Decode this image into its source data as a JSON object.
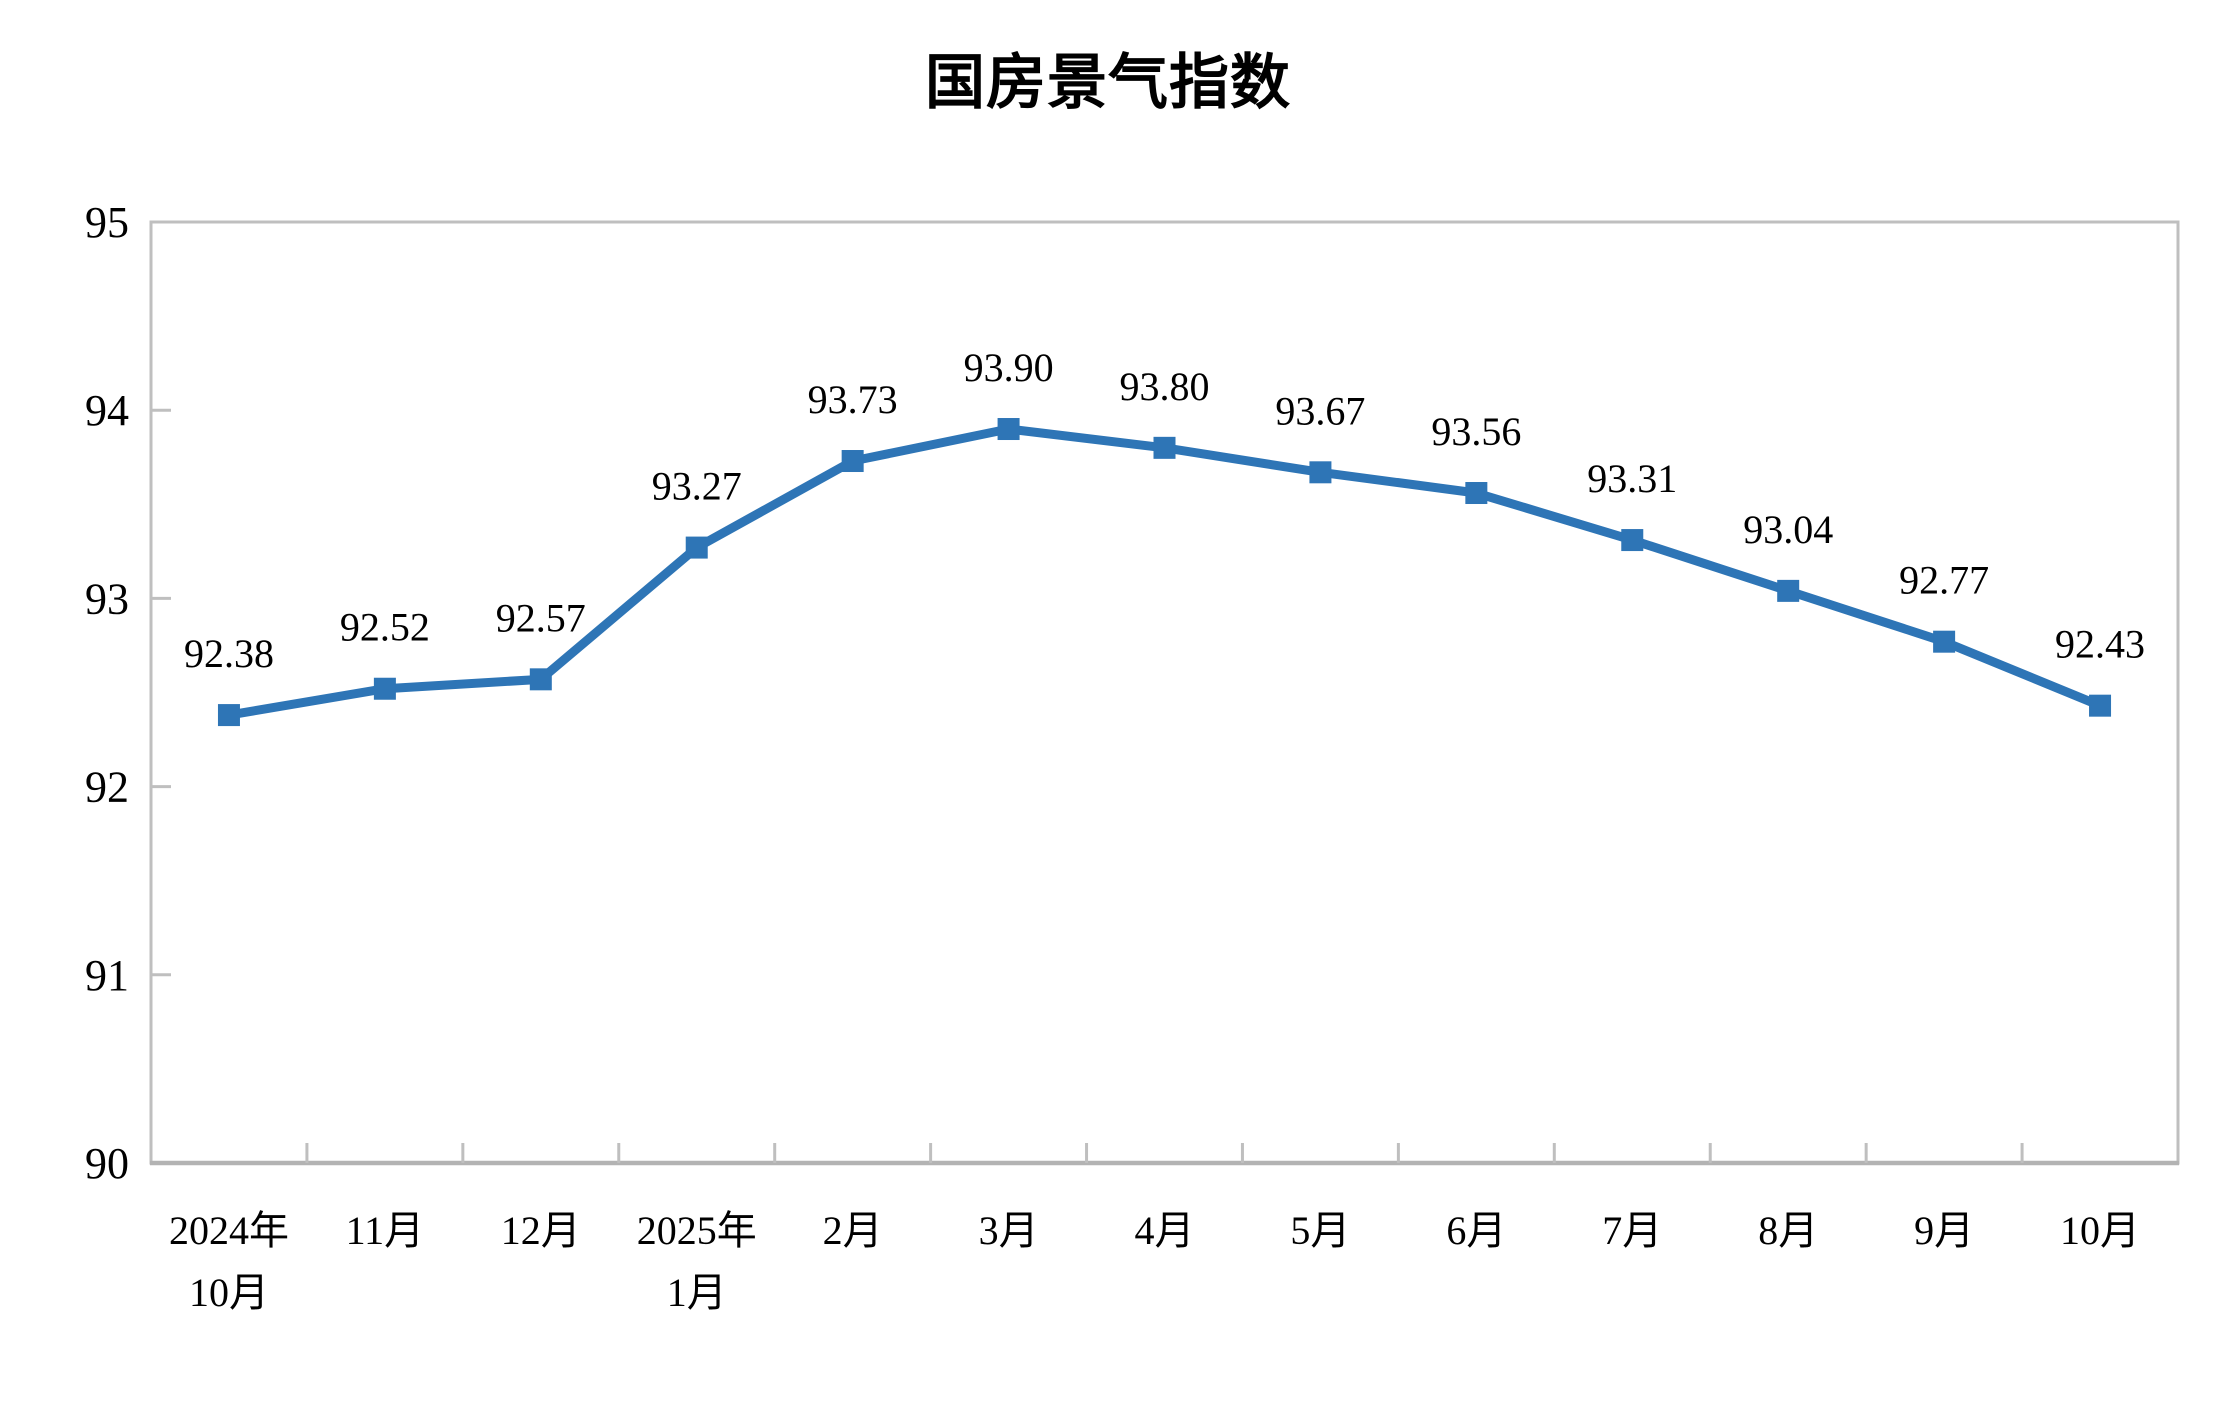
{
  "page": {
    "background_color": "#ffffff"
  },
  "chart_data": {
    "type": "line",
    "title": "国房景气指数",
    "categories": [
      [
        "2024年",
        "10月"
      ],
      [
        "11月"
      ],
      [
        "12月"
      ],
      [
        "2025年",
        "1月"
      ],
      [
        "2月"
      ],
      [
        "3月"
      ],
      [
        "4月"
      ],
      [
        "5月"
      ],
      [
        "6月"
      ],
      [
        "7月"
      ],
      [
        "8月"
      ],
      [
        "9月"
      ],
      [
        "10月"
      ]
    ],
    "values": [
      92.38,
      92.52,
      92.57,
      93.27,
      93.73,
      93.9,
      93.8,
      93.67,
      93.56,
      93.31,
      93.04,
      92.77,
      92.43
    ],
    "data_labels": [
      "92.38",
      "92.52",
      "92.57",
      "93.27",
      "93.73",
      "93.90",
      "93.80",
      "93.67",
      "93.56",
      "93.31",
      "93.04",
      "92.77",
      "92.43"
    ],
    "xlabel": "",
    "ylabel": "",
    "ylim": [
      90,
      95
    ],
    "yticks": [
      "90",
      "91",
      "92",
      "93",
      "94",
      "95"
    ],
    "grid": false,
    "legend_position": "none",
    "data_label_position": "above",
    "marker": "square",
    "line_color": "#2E75B6",
    "marker_color": "#2E75B6",
    "axis_color": "#BFBFBF",
    "text_color": "#000000"
  }
}
